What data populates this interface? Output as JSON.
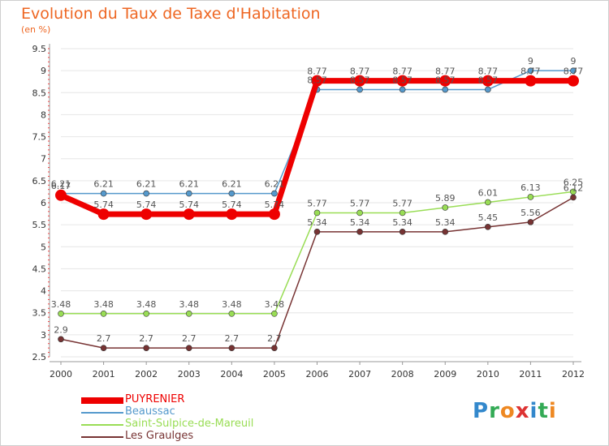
{
  "chart_data": {
    "type": "line",
    "title": "Evolution du Taux de Taxe d'Habitation",
    "subtitle": "(en %)",
    "x": [
      "2000",
      "2001",
      "2002",
      "2003",
      "2004",
      "2005",
      "2006",
      "2007",
      "2008",
      "2009",
      "2010",
      "2011",
      "2012"
    ],
    "ylim": [
      2.5,
      9.5
    ],
    "yticks": [
      "2.5",
      "3",
      "3.5",
      "4",
      "4.5",
      "5",
      "5.5",
      "6",
      "6.5",
      "7",
      "7.5",
      "8",
      "8.5",
      "9",
      "9.5"
    ],
    "series": [
      {
        "name": "PUYRENIER",
        "color": "#ee0000",
        "values": [
          6.17,
          5.74,
          5.74,
          5.74,
          5.74,
          5.74,
          8.77,
          8.77,
          8.77,
          8.77,
          8.77,
          8.77,
          8.77
        ],
        "labels": [
          "6.17",
          "5.74",
          "5.74",
          "5.74",
          "5.74",
          "5.74",
          "8.77",
          "8.77",
          "8.77",
          "8.77",
          "8.77",
          "8.77",
          "8.77"
        ]
      },
      {
        "name": "Beaussac",
        "color": "#5599cc",
        "values": [
          6.21,
          6.21,
          6.21,
          6.21,
          6.21,
          6.21,
          8.57,
          8.57,
          8.57,
          8.57,
          8.57,
          9,
          9
        ],
        "labels": [
          "6.21",
          "6.21",
          "6.21",
          "6.21",
          "6.21",
          "6.21",
          "8.57",
          "8.57",
          "8.57",
          "8.57",
          "8.57",
          "9",
          "9"
        ]
      },
      {
        "name": "Saint-Sulpice-de-Mareuil",
        "color": "#99dd55",
        "values": [
          3.48,
          3.48,
          3.48,
          3.48,
          3.48,
          3.48,
          5.77,
          5.77,
          5.77,
          5.89,
          6.01,
          6.13,
          6.25
        ],
        "labels": [
          "3.48",
          "3.48",
          "3.48",
          "3.48",
          "3.48",
          "3.48",
          "5.77",
          "5.77",
          "5.77",
          "5.89",
          "6.01",
          "6.13",
          "6.25"
        ]
      },
      {
        "name": "Les Graulges",
        "color": "#773333",
        "values": [
          2.9,
          2.7,
          2.7,
          2.7,
          2.7,
          2.7,
          5.34,
          5.34,
          5.34,
          5.34,
          5.45,
          5.56,
          6.12
        ],
        "labels": [
          "2.9",
          "2.7",
          "2.7",
          "2.7",
          "2.7",
          "2.7",
          "5.34",
          "5.34",
          "5.34",
          "5.34",
          "5.45",
          "5.56",
          "6.12"
        ]
      }
    ],
    "legend": "bottom-left",
    "grid": true
  },
  "logo": {
    "text": "Proxiti",
    "letters": [
      "P",
      "r",
      "o",
      "x",
      "i",
      "t",
      "i"
    ],
    "colors": [
      "#3388cc",
      "#33aa55",
      "#ee8822",
      "#dd3333",
      "#3388cc",
      "#33aa55",
      "#ee8822"
    ]
  }
}
